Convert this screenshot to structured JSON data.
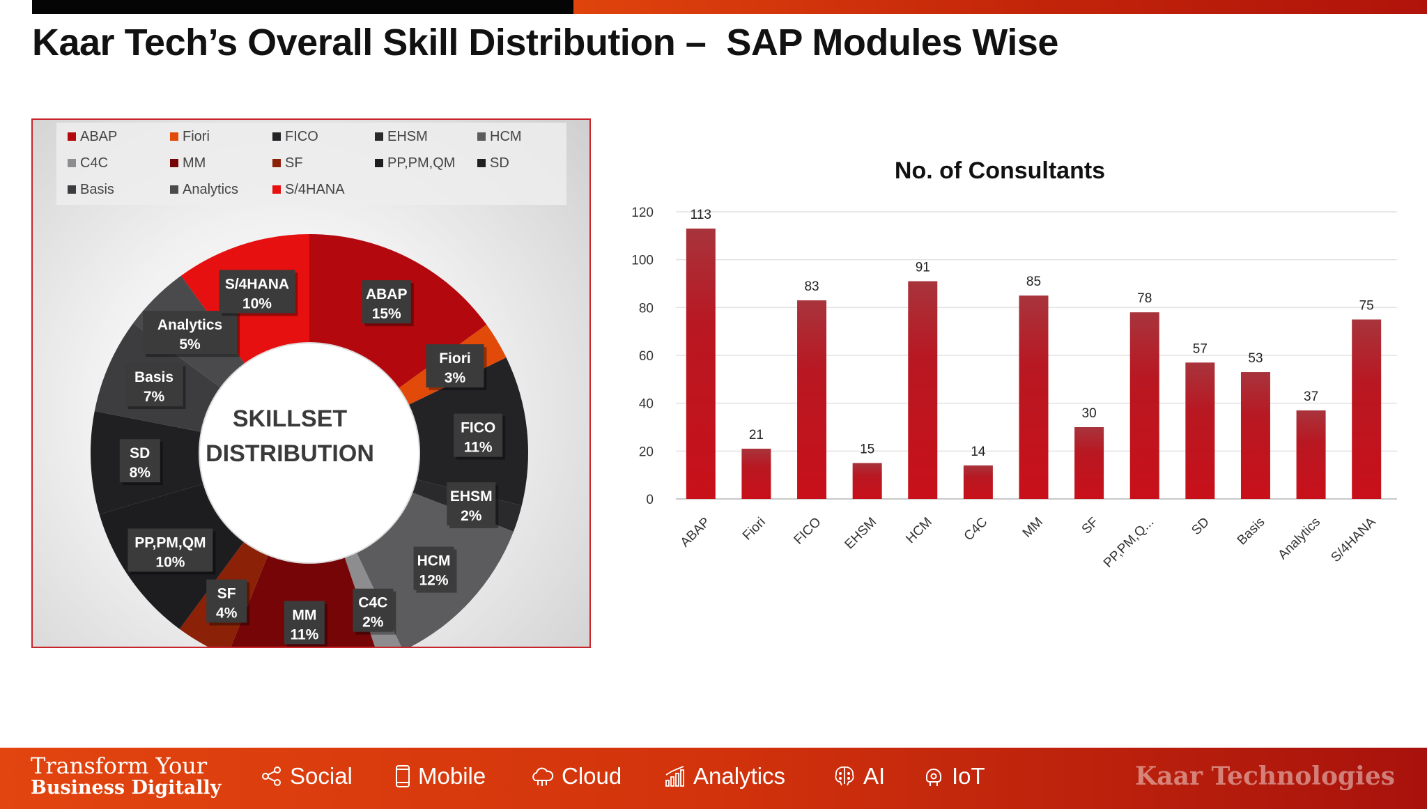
{
  "title": "Kaar Tech’s Overall Skill Distribution –  SAP Modules Wise",
  "chart_data": [
    {
      "type": "pie",
      "title": "SKILLSET DISTRIBUTION",
      "title_lines": [
        "SKILLSET",
        "DISTRIBUTION"
      ],
      "labels": [
        "ABAP",
        "Fiori",
        "FICO",
        "EHSM",
        "HCM",
        "C4C",
        "MM",
        "SF",
        "PP,PM,QM",
        "SD",
        "Basis",
        "Analytics",
        "S/4HANA"
      ],
      "percent_labels": [
        "15%",
        "3%",
        "11%",
        "2%",
        "12%",
        "2%",
        "11%",
        "4%",
        "10%",
        "8%",
        "7%",
        "5%",
        "10%"
      ],
      "values": [
        113,
        21,
        83,
        15,
        91,
        14,
        85,
        30,
        78,
        57,
        53,
        37,
        75
      ],
      "colors": [
        "#b3080e",
        "#e24a0a",
        "#232326",
        "#2a2a2c",
        "#5c5c5e",
        "#8d8d8f",
        "#750507",
        "#8b2208",
        "#1d1d1f",
        "#202022",
        "#3d3d3f",
        "#4a4a4c",
        "#e5100f"
      ],
      "legend_position": "top"
    },
    {
      "type": "bar",
      "title": "No. of Consultants",
      "categories": [
        "ABAP",
        "Fiori",
        "FICO",
        "EHSM",
        "HCM",
        "C4C",
        "MM",
        "SF",
        "PP,PM,Q...",
        "SD",
        "Basis",
        "Analytics",
        "S/4HANA"
      ],
      "values": [
        113,
        21,
        83,
        15,
        91,
        14,
        85,
        30,
        78,
        57,
        53,
        37,
        75
      ],
      "ylim": [
        0,
        120
      ],
      "yticks": [
        0,
        20,
        40,
        60,
        80,
        100,
        120
      ],
      "grid": true,
      "xlabel": "",
      "ylabel": "",
      "color": "#b0101a"
    }
  ],
  "footer": {
    "tagline_line1": "Transform Your",
    "tagline_line2": "Business Digitally",
    "nav": [
      {
        "icon": "share-icon",
        "label": "Social"
      },
      {
        "icon": "mobile-icon",
        "label": "Mobile"
      },
      {
        "icon": "cloud-icon",
        "label": "Cloud"
      },
      {
        "icon": "analytics-icon",
        "label": "Analytics"
      },
      {
        "icon": "brain-icon",
        "label": "AI"
      },
      {
        "icon": "iot-icon",
        "label": "IoT"
      }
    ],
    "brand": "Kaar Technologies"
  }
}
